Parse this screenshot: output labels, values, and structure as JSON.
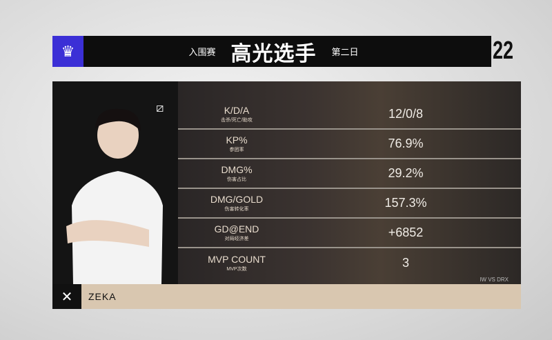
{
  "header": {
    "logo_icon": "worlds-logo-icon",
    "stage": "入围赛",
    "title": "高光选手",
    "day": "第二日",
    "number": "22"
  },
  "stats": [
    {
      "label": "K/D/A",
      "sub": "击杀/死亡/助攻",
      "value": "12/0/8"
    },
    {
      "label": "KP%",
      "sub": "参团率",
      "value": "76.9%"
    },
    {
      "label": "DMG%",
      "sub": "伤害占比",
      "value": "29.2%"
    },
    {
      "label": "DMG/GOLD",
      "sub": "伤害转化率",
      "value": "157.3%"
    },
    {
      "label": "GD@END",
      "sub": "对局经济差",
      "value": "+6852"
    },
    {
      "label": "MVP COUNT",
      "sub": "MVP次数",
      "value": "3"
    }
  ],
  "match": "IW VS DRX",
  "player": {
    "name": "ZEKA",
    "team_logo_icon": "drx-logo-icon"
  },
  "colors": {
    "logo_bg": "#3b2fd6",
    "name_bar": "#d9c7b0",
    "label": "#e8dccd"
  }
}
